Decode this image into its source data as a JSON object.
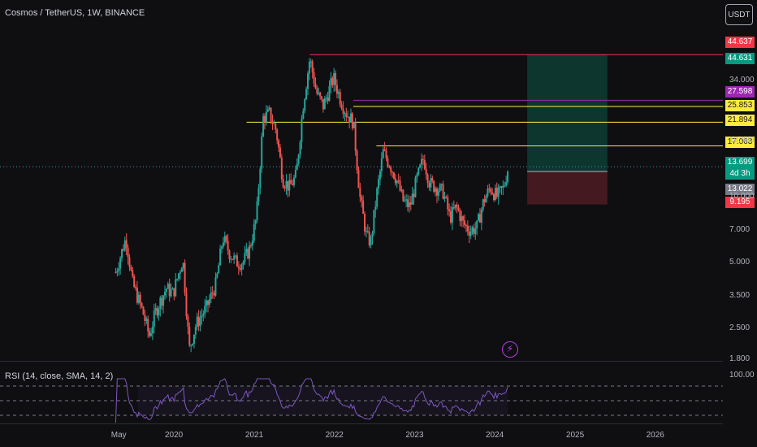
{
  "header": {
    "symbol_title": "Cosmos / TetherUS, 1W, BINANCE",
    "unit_button": "USDT"
  },
  "indicator": {
    "rsi_label": "RSI (14, close, SMA, 14, 2)",
    "rsi_scale_top": "100.00"
  },
  "price_tags": [
    {
      "label": "44.637",
      "bg": "#f23645",
      "fg": "#ffffff"
    },
    {
      "label": "44.631",
      "bg": "#089981",
      "fg": "#ffffff"
    },
    {
      "label": "27.598",
      "bg": "#9c27b0",
      "fg": "#ffffff"
    },
    {
      "label": "25.853",
      "bg": "#ffeb3b",
      "fg": "#131722"
    },
    {
      "label": "21.894",
      "bg": "#ffeb3b",
      "fg": "#131722"
    },
    {
      "label": "17.063",
      "bg": "#ffeb3b",
      "fg": "#131722"
    },
    {
      "label": "13.699",
      "bg": "#089981",
      "fg": "#ffffff"
    },
    {
      "label": "4d 3h",
      "bg": "#089981",
      "fg": "#ffffff"
    },
    {
      "label": "13.022",
      "bg": "#787b86",
      "fg": "#ffffff"
    },
    {
      "label": "9.195",
      "bg": "#f23645",
      "fg": "#ffffff"
    }
  ],
  "colors": {
    "up": "#26a69a",
    "down": "#ef5350",
    "rsi_line": "#7e57c2",
    "profit_zone": "#0d3b33",
    "loss_zone": "#4a1c22"
  },
  "chart_data": {
    "type": "candlestick",
    "scale": "log",
    "y_ticks": [
      34.0,
      18.0,
      10.0,
      7.0,
      5.0,
      3.5,
      2.5,
      1.8
    ],
    "y_tick_labels": [
      "34.000",
      "18.000",
      "10.000",
      "7.000",
      "5.000",
      "3.500",
      "2.500",
      "1.800"
    ],
    "x_tick_labels": [
      "May",
      "2020",
      "2021",
      "2022",
      "2023",
      "2024",
      "2025",
      "2026"
    ],
    "x_tick_dates": [
      "2019-05-01",
      "2020-01-01",
      "2021-01-01",
      "2022-01-01",
      "2023-01-01",
      "2024-01-01",
      "2025-01-01",
      "2026-01-01"
    ],
    "last_price": 13.699,
    "horizontal_levels": [
      {
        "price": 44.637,
        "color": "#f23645",
        "from_date": "2021-09-15"
      },
      {
        "price": 27.598,
        "color": "#9c27b0",
        "from_date": "2022-04-01"
      },
      {
        "price": 25.853,
        "color": "#ffeb3b",
        "from_date": "2022-04-01"
      },
      {
        "price": 21.894,
        "color": "#ffeb3b",
        "from_date": "2020-12-01"
      },
      {
        "price": 17.063,
        "color": "#ffeb3b",
        "from_date": "2022-07-15"
      }
    ],
    "position": {
      "entry": 13.022,
      "target": 44.631,
      "stop": 9.195,
      "start_date": "2024-06-01",
      "end_date": "2025-06-01"
    },
    "price_path": [
      [
        "2019-04-15",
        4.5
      ],
      [
        "2019-06-01",
        6.5
      ],
      [
        "2019-07-01",
        4.0
      ],
      [
        "2019-08-15",
        3.0
      ],
      [
        "2019-09-15",
        2.3
      ],
      [
        "2019-10-15",
        3.0
      ],
      [
        "2019-12-01",
        3.8
      ],
      [
        "2020-01-01",
        3.6
      ],
      [
        "2020-02-15",
        5.2
      ],
      [
        "2020-03-15",
        2.0
      ],
      [
        "2020-04-15",
        2.6
      ],
      [
        "2020-06-01",
        3.1
      ],
      [
        "2020-07-15",
        4.0
      ],
      [
        "2020-08-15",
        6.5
      ],
      [
        "2020-09-15",
        5.5
      ],
      [
        "2020-10-15",
        5.0
      ],
      [
        "2020-11-15",
        5.0
      ],
      [
        "2020-12-15",
        5.8
      ],
      [
        "2021-01-15",
        8.0
      ],
      [
        "2021-02-15",
        23.0
      ],
      [
        "2021-03-15",
        24.0
      ],
      [
        "2021-04-15",
        20.0
      ],
      [
        "2021-05-15",
        12.0
      ],
      [
        "2021-06-15",
        11.0
      ],
      [
        "2021-07-15",
        12.5
      ],
      [
        "2021-08-15",
        26.0
      ],
      [
        "2021-09-15",
        43.0
      ],
      [
        "2021-10-15",
        30.0
      ],
      [
        "2021-11-15",
        26.0
      ],
      [
        "2022-01-01",
        35.0
      ],
      [
        "2022-02-01",
        28.0
      ],
      [
        "2022-03-01",
        24.0
      ],
      [
        "2022-04-01",
        22.0
      ],
      [
        "2022-05-01",
        10.0
      ],
      [
        "2022-06-01",
        6.5
      ],
      [
        "2022-06-20",
        6.2
      ],
      [
        "2022-07-15",
        10.0
      ],
      [
        "2022-08-15",
        16.0
      ],
      [
        "2022-09-15",
        14.0
      ],
      [
        "2022-10-15",
        12.0
      ],
      [
        "2022-11-15",
        9.5
      ],
      [
        "2022-12-15",
        9.0
      ],
      [
        "2023-01-15",
        12.0
      ],
      [
        "2023-02-15",
        15.0
      ],
      [
        "2023-03-15",
        11.5
      ],
      [
        "2023-04-15",
        11.0
      ],
      [
        "2023-05-15",
        10.5
      ],
      [
        "2023-06-15",
        8.0
      ],
      [
        "2023-07-15",
        9.0
      ],
      [
        "2023-08-15",
        7.5
      ],
      [
        "2023-09-15",
        7.0
      ],
      [
        "2023-10-15",
        7.2
      ],
      [
        "2023-11-15",
        9.5
      ],
      [
        "2023-12-15",
        11.0
      ],
      [
        "2024-01-15",
        10.0
      ],
      [
        "2024-02-15",
        11.0
      ],
      [
        "2024-03-01",
        13.0
      ],
      [
        "2024-03-10",
        14.0
      ]
    ]
  }
}
